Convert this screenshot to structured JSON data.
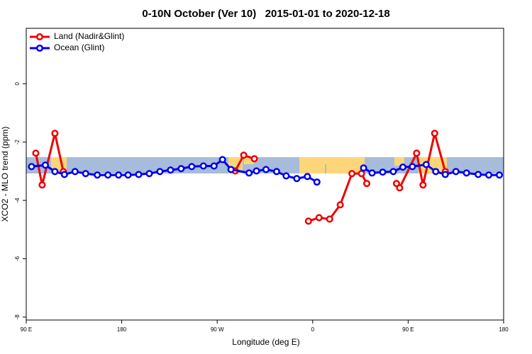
{
  "chart_data": {
    "type": "line",
    "title": "0-10N October (Ver 10)   2015-01-01 to 2020-12-18",
    "x_label": "Longitude (deg E)",
    "y_label": "XCO2 - MLO trend (ppm)",
    "xlim": [
      90,
      540
    ],
    "xticks": [
      {
        "value": 90,
        "label": "90 E"
      },
      180,
      {
        "value": 270,
        "label": "90 W"
      },
      {
        "value": 360,
        "label": "0"
      },
      {
        "value": 450,
        "label": "90 E"
      },
      {
        "value": 540,
        "label": "180"
      }
    ],
    "ylim": [
      -8.1,
      1.9
    ],
    "yticks": [
      0,
      -2,
      -4,
      -6,
      -8
    ],
    "legend": "top-left",
    "series": [
      {
        "name": "Land (Nadir&Glint)",
        "color": "#ee0000",
        "x": [
          99,
          105,
          117,
          125,
          null,
          287,
          295,
          305,
          null,
          356,
          366,
          376,
          386,
          397,
          406,
          411,
          null,
          439,
          442,
          458,
          464,
          475,
          485
        ],
        "values": [
          -2.38,
          -3.47,
          -1.7,
          -3.01,
          null,
          -2.99,
          -2.45,
          -2.57,
          null,
          -4.71,
          -4.59,
          -4.64,
          -4.15,
          -3.08,
          -3.08,
          -3.42,
          null,
          -3.42,
          -3.57,
          -2.38,
          -3.47,
          -1.7,
          -3.01
        ]
      },
      {
        "name": "Ocean (Glint)",
        "color": "#0000ee",
        "x": [
          95,
          108,
          117,
          126,
          136,
          146,
          157,
          167,
          177,
          186,
          196,
          206,
          216,
          226,
          236,
          246,
          257,
          267,
          275,
          283,
          300,
          307,
          316,
          326,
          335,
          345,
          355,
          364,
          null,
          408,
          416,
          426,
          436,
          445,
          454,
          467,
          476,
          485,
          495,
          505,
          516,
          526,
          536
        ],
        "values": [
          -2.84,
          -2.79,
          -3.01,
          -3.11,
          -3.01,
          -3.08,
          -3.13,
          -3.13,
          -3.13,
          -3.13,
          -3.11,
          -3.08,
          -3.01,
          -2.96,
          -2.91,
          -2.84,
          -2.82,
          -2.82,
          -2.6,
          -2.94,
          -3.06,
          -2.99,
          -2.94,
          -3.01,
          -3.16,
          -3.25,
          -3.18,
          -3.37,
          null,
          -2.89,
          -3.06,
          -3.03,
          -3.01,
          -2.86,
          -2.84,
          -2.77,
          -3.01,
          -3.11,
          -3.01,
          -3.06,
          -3.11,
          -3.13,
          -3.13
        ]
      }
    ]
  }
}
